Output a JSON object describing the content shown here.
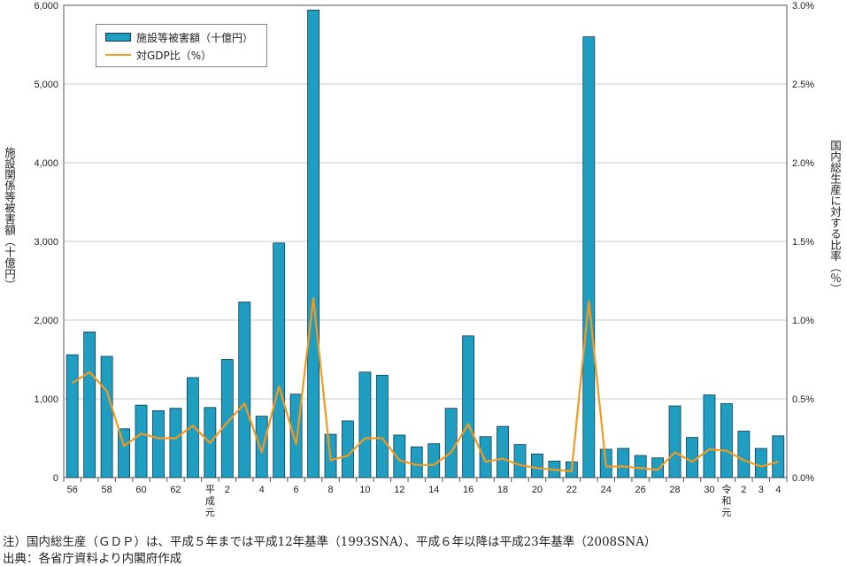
{
  "colors": {
    "bar": "#1f9ec2",
    "bar_border": "#0d3c52",
    "line": "#f29a1f",
    "grid": "#c8c8c8"
  },
  "ylabel": "施設関係等被害額（十億円）",
  "y2label": "国内総生産に対する比率（％）",
  "legend": {
    "bar_label": "施設等被害額（十億円）",
    "line_label": "対GDP比（%）"
  },
  "notes": {
    "note": "注）国内総生産（ＧＤＰ）は、平成５年までは平成12年基準（1993SNA）、平成６年以降は平成23年基準（2008SNA）",
    "source": "出典：各省庁資料より内閣府作成"
  },
  "chart_data": {
    "type": "bar",
    "categories": [
      "56",
      "57",
      "58",
      "59",
      "60",
      "61",
      "62",
      "63",
      "平成元",
      "2",
      "3",
      "4",
      "5",
      "6",
      "7",
      "8",
      "9",
      "10",
      "11",
      "12",
      "13",
      "14",
      "15",
      "16",
      "17",
      "18",
      "19",
      "20",
      "21",
      "22",
      "23",
      "24",
      "25",
      "26",
      "27",
      "28",
      "29",
      "30",
      "令和元",
      "2",
      "3",
      "4"
    ],
    "tick_labels": [
      "56",
      "",
      "58",
      "",
      "60",
      "",
      "62",
      "",
      "平成元",
      "2",
      "",
      "4",
      "",
      "6",
      "",
      "8",
      "",
      "10",
      "",
      "12",
      "",
      "14",
      "",
      "16",
      "",
      "18",
      "",
      "20",
      "",
      "22",
      "",
      "24",
      "",
      "26",
      "",
      "28",
      "",
      "30",
      "令和元",
      "2",
      "3",
      "4"
    ],
    "series": [
      {
        "name": "施設等被害額（十億円）",
        "axis": "left",
        "type": "bar",
        "values": [
          1560,
          1850,
          1540,
          620,
          920,
          850,
          880,
          1270,
          890,
          1500,
          2230,
          780,
          2980,
          1060,
          5940,
          550,
          720,
          1340,
          1300,
          540,
          390,
          430,
          880,
          1800,
          520,
          650,
          420,
          300,
          210,
          200,
          5600,
          360,
          370,
          280,
          250,
          910,
          510,
          1050,
          940,
          590,
          370,
          530
        ]
      },
      {
        "name": "対GDP比（%）",
        "axis": "right",
        "type": "line",
        "values": [
          0.6,
          0.67,
          0.55,
          0.2,
          0.28,
          0.25,
          0.25,
          0.33,
          0.22,
          0.35,
          0.47,
          0.16,
          0.58,
          0.21,
          1.14,
          0.11,
          0.14,
          0.25,
          0.25,
          0.11,
          0.08,
          0.08,
          0.16,
          0.34,
          0.1,
          0.12,
          0.08,
          0.06,
          0.05,
          0.04,
          1.12,
          0.07,
          0.07,
          0.06,
          0.05,
          0.16,
          0.1,
          0.18,
          0.17,
          0.11,
          0.07,
          0.1
        ]
      }
    ],
    "ylim": [
      0,
      6000
    ],
    "y_ticks": [
      "0",
      "1,000",
      "2,000",
      "3,000",
      "4,000",
      "5,000",
      "6,000"
    ],
    "y2lim": [
      0,
      3.0
    ],
    "y2_ticks": [
      "0.0%",
      "0.5%",
      "1.0%",
      "1.5%",
      "2.0%",
      "2.5%",
      "3.0%"
    ],
    "grid": true,
    "legend_position": "top-left"
  }
}
